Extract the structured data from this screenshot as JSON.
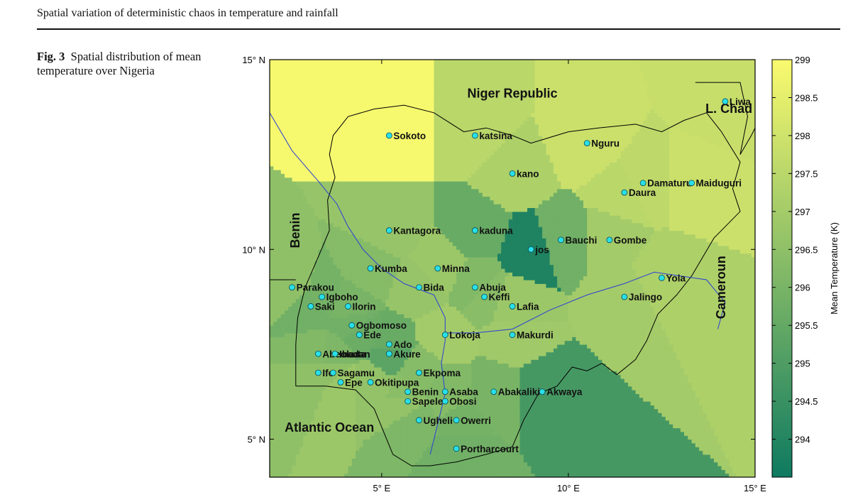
{
  "header": {
    "running_title": "Spatial variation of deterministic chaos in temperature and rainfall"
  },
  "caption": {
    "label": "Fig. 3",
    "text": "Spatial distribution of mean temperature over Nigeria"
  },
  "chart_data": {
    "type": "heatmap",
    "title": "",
    "xlabel": "",
    "ylabel": "",
    "xlim": [
      2,
      15
    ],
    "ylim": [
      4,
      15
    ],
    "x_ticks": [
      {
        "value": 5,
        "label": "5° E"
      },
      {
        "value": 10,
        "label": "10° E"
      },
      {
        "value": 15,
        "label": "15° E"
      }
    ],
    "y_ticks": [
      {
        "value": 15,
        "label": "15° N"
      },
      {
        "value": 10,
        "label": "10° N"
      },
      {
        "value": 5,
        "label": "5° N"
      }
    ],
    "colorbar": {
      "label": "Mean Temperature (K)",
      "range": [
        293.5,
        299
      ],
      "ticks": [
        "299",
        "298.5",
        "298",
        "297.5",
        "297",
        "296.5",
        "296",
        "295.5",
        "295",
        "294.5",
        "294"
      ],
      "color_low": "#0e7a60",
      "color_high": "#fafa6e"
    },
    "region_labels": [
      {
        "text": "Niger Republic",
        "lon": 8.5,
        "lat": 14.0
      },
      {
        "text": "L. Chad",
        "lon": 14.3,
        "lat": 13.6
      },
      {
        "text": "Benin",
        "lon": 2.8,
        "lat": 10.5,
        "rotate": true
      },
      {
        "text": "Cameroun",
        "lon": 14.2,
        "lat": 9.0,
        "rotate": true
      },
      {
        "text": "Atlantic Ocean",
        "lon": 3.6,
        "lat": 5.2
      }
    ],
    "stations": [
      {
        "name": "Sokoto",
        "lon": 5.2,
        "lat": 13.0,
        "value": 298.9
      },
      {
        "name": "katsina",
        "lon": 7.5,
        "lat": 13.0,
        "value": 297.5
      },
      {
        "name": "Liwa",
        "lon": 14.2,
        "lat": 13.9,
        "value": 297.8
      },
      {
        "name": "Nguru",
        "lon": 10.5,
        "lat": 12.8,
        "value": 297.9
      },
      {
        "name": "kano",
        "lon": 8.5,
        "lat": 12.0,
        "value": 297.2
      },
      {
        "name": "Damaturu",
        "lon": 12.0,
        "lat": 11.75,
        "value": 297.6
      },
      {
        "name": "Maiduguri",
        "lon": 13.3,
        "lat": 11.75,
        "value": 297.9
      },
      {
        "name": "Daura",
        "lon": 11.5,
        "lat": 11.5,
        "value": 297.5
      },
      {
        "name": "Kantagora",
        "lon": 5.2,
        "lat": 10.5,
        "value": 296.7
      },
      {
        "name": "kaduna",
        "lon": 7.5,
        "lat": 10.5,
        "value": 295.6
      },
      {
        "name": "Bauchi",
        "lon": 9.8,
        "lat": 10.25,
        "value": 295.8
      },
      {
        "name": "Gombe",
        "lon": 11.1,
        "lat": 10.25,
        "value": 297.0
      },
      {
        "name": "jos",
        "lon": 9.0,
        "lat": 10.0,
        "value": 293.9
      },
      {
        "name": "Kumba",
        "lon": 4.7,
        "lat": 9.5,
        "value": 296.3
      },
      {
        "name": "Minna",
        "lon": 6.5,
        "lat": 9.5,
        "value": 296.8
      },
      {
        "name": "Yola",
        "lon": 12.5,
        "lat": 9.25,
        "value": 297.2
      },
      {
        "name": "Parakou",
        "lon": 2.6,
        "lat": 9.0,
        "value": 296.5
      },
      {
        "name": "Bida",
        "lon": 6.0,
        "lat": 9.0,
        "value": 296.7
      },
      {
        "name": "Abuja",
        "lon": 7.5,
        "lat": 9.0,
        "value": 296.2
      },
      {
        "name": "Igboho",
        "lon": 3.4,
        "lat": 8.75,
        "value": 295.9
      },
      {
        "name": "Keffi",
        "lon": 7.75,
        "lat": 8.75,
        "value": 296.4
      },
      {
        "name": "Jalingo",
        "lon": 11.5,
        "lat": 8.75,
        "value": 297.0
      },
      {
        "name": "Saki",
        "lon": 3.1,
        "lat": 8.5,
        "value": 295.8
      },
      {
        "name": "Ilorin",
        "lon": 4.1,
        "lat": 8.5,
        "value": 296.0
      },
      {
        "name": "Lafia",
        "lon": 8.5,
        "lat": 8.5,
        "value": 296.8
      },
      {
        "name": "Ogbomoso",
        "lon": 4.2,
        "lat": 8.0,
        "value": 295.8
      },
      {
        "name": "Ede",
        "lon": 4.4,
        "lat": 7.75,
        "value": 295.7
      },
      {
        "name": "Lokoja",
        "lon": 6.7,
        "lat": 7.75,
        "value": 297.0
      },
      {
        "name": "Makurdi",
        "lon": 8.5,
        "lat": 7.75,
        "value": 296.9
      },
      {
        "name": "Ado",
        "lon": 5.2,
        "lat": 7.5,
        "value": 295.6
      },
      {
        "name": "Abeokuta",
        "lon": 3.3,
        "lat": 7.25,
        "value": 296.2
      },
      {
        "name": "Ibadan",
        "lon": 3.75,
        "lat": 7.25,
        "value": 296.1
      },
      {
        "name": "Akure",
        "lon": 5.2,
        "lat": 7.25,
        "value": 295.3
      },
      {
        "name": "Ifo",
        "lon": 3.3,
        "lat": 6.75,
        "value": 296.5
      },
      {
        "name": "Sagamu",
        "lon": 3.7,
        "lat": 6.75,
        "value": 296.5
      },
      {
        "name": "Ekpoma",
        "lon": 6.0,
        "lat": 6.75,
        "value": 296.3
      },
      {
        "name": "Epe",
        "lon": 3.9,
        "lat": 6.5,
        "value": 296.8
      },
      {
        "name": "Okitipupa",
        "lon": 4.7,
        "lat": 6.5,
        "value": 296.6
      },
      {
        "name": "Benin",
        "lon": 5.7,
        "lat": 6.25,
        "value": 296.4
      },
      {
        "name": "Asaba",
        "lon": 6.7,
        "lat": 6.25,
        "value": 296.2
      },
      {
        "name": "Abakaliki",
        "lon": 8.0,
        "lat": 6.25,
        "value": 296.0
      },
      {
        "name": "Akwaya",
        "lon": 9.3,
        "lat": 6.25,
        "value": 294.8
      },
      {
        "name": "Sapele",
        "lon": 5.7,
        "lat": 6.0,
        "value": 296.6
      },
      {
        "name": "Obosi",
        "lon": 6.7,
        "lat": 6.0,
        "value": 296.3
      },
      {
        "name": "Ugheli",
        "lon": 6.0,
        "lat": 5.5,
        "value": 296.1
      },
      {
        "name": "Owerri",
        "lon": 7.0,
        "lat": 5.5,
        "value": 295.9
      },
      {
        "name": "Portharcourt",
        "lon": 7.0,
        "lat": 4.75,
        "value": 295.8
      }
    ]
  }
}
